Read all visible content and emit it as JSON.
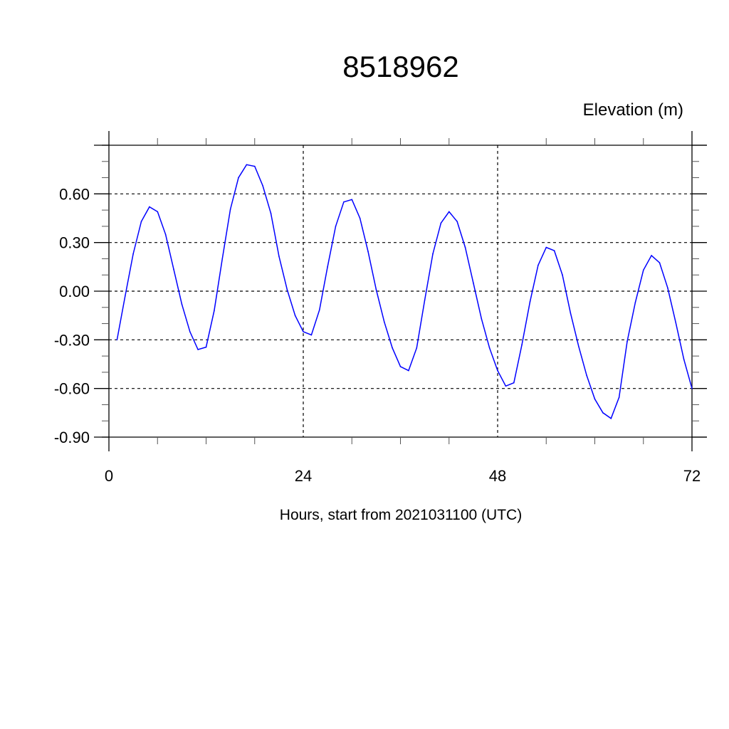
{
  "chart_data": {
    "type": "line",
    "title": "8518962",
    "subtitle": "Elevation (m)",
    "xlabel": "Hours, start from 2021031100 (UTC)",
    "ylabel": "",
    "xlim": [
      0,
      72
    ],
    "ylim": [
      -0.9,
      0.9
    ],
    "x_ticks": [
      0,
      24,
      48,
      72
    ],
    "x_tick_labels": [
      "0",
      "24",
      "48",
      "72"
    ],
    "y_ticks": [
      -0.9,
      -0.6,
      -0.3,
      0.0,
      0.3,
      0.6
    ],
    "y_tick_labels": [
      "-0.90",
      "-0.60",
      "-0.30",
      "0.00",
      "0.30",
      "0.60"
    ],
    "x_minor_step": 6,
    "y_minor_step": 0.1,
    "grid": true,
    "grid_style": "dashed",
    "line_color": "#0000ff",
    "series": [
      {
        "x": [
          1,
          2,
          3,
          4,
          5,
          6,
          7,
          8,
          9,
          10,
          11,
          12,
          13,
          14,
          15,
          16,
          17,
          18,
          19,
          20,
          21,
          22,
          23,
          24,
          25,
          26,
          27,
          28,
          29,
          30,
          31,
          32,
          33,
          34,
          35,
          36,
          37,
          38,
          39,
          40,
          41,
          42,
          43,
          44,
          45,
          46,
          47,
          48,
          49,
          50,
          51,
          52,
          53,
          54,
          55,
          56,
          57,
          58,
          59,
          60,
          61,
          62,
          63,
          64,
          65,
          66,
          67,
          68,
          69,
          70,
          71,
          72
        ],
        "values": [
          -0.3,
          -0.03,
          0.23,
          0.43,
          0.52,
          0.49,
          0.35,
          0.135,
          -0.08,
          -0.25,
          -0.36,
          -0.345,
          -0.12,
          0.2,
          0.505,
          0.7,
          0.78,
          0.77,
          0.65,
          0.48,
          0.215,
          0.01,
          -0.15,
          -0.25,
          -0.27,
          -0.115,
          0.15,
          0.4,
          0.55,
          0.565,
          0.45,
          0.245,
          0.01,
          -0.19,
          -0.35,
          -0.465,
          -0.49,
          -0.35,
          -0.055,
          0.23,
          0.42,
          0.49,
          0.43,
          0.27,
          0.05,
          -0.17,
          -0.35,
          -0.49,
          -0.585,
          -0.565,
          -0.33,
          -0.065,
          0.16,
          0.27,
          0.25,
          0.1,
          -0.135,
          -0.34,
          -0.52,
          -0.665,
          -0.75,
          -0.785,
          -0.655,
          -0.31,
          -0.07,
          0.13,
          0.22,
          0.175,
          0.02,
          -0.195,
          -0.42,
          -0.6
        ]
      }
    ]
  }
}
